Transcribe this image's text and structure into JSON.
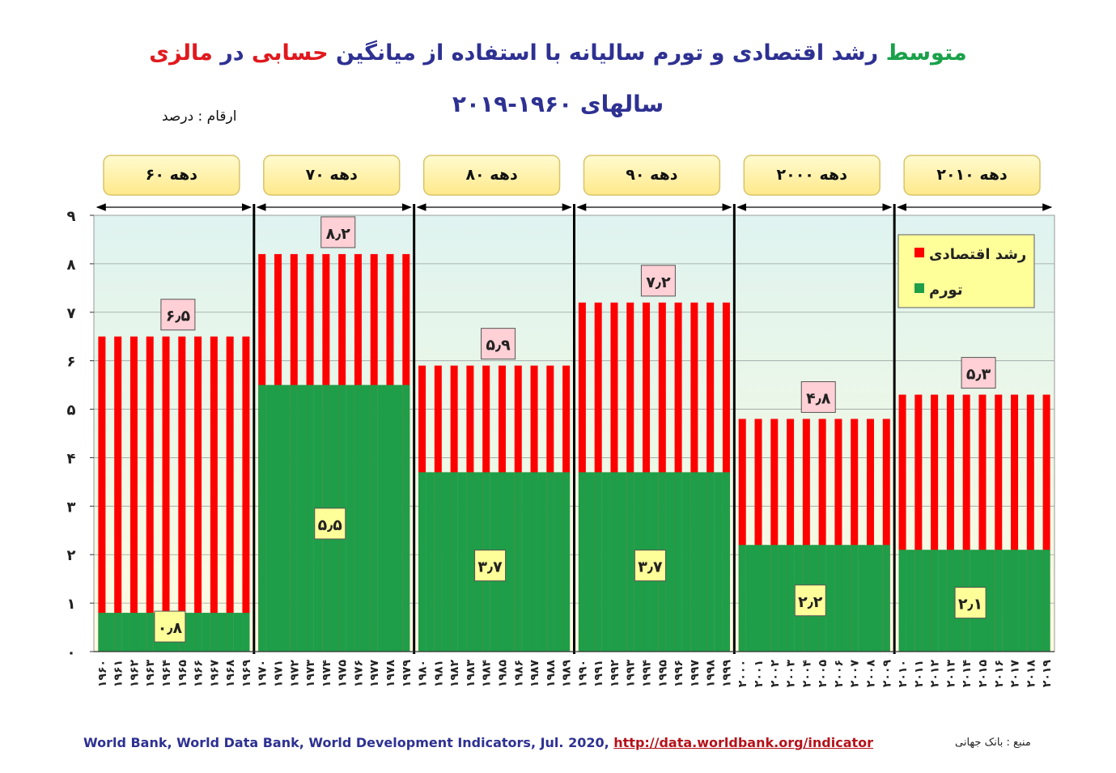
{
  "title": {
    "part1": "متوسط",
    "part2": "رشد اقتصادی و تورم سالیانه با استفاده از میانگین",
    "part3": "حسابی",
    "part4": "در",
    "part5": "مالزی",
    "line2": "سالهای ۱۹۶۰-۲۰۱۹"
  },
  "units_label": "ارقام : درصد",
  "source": {
    "text": "World Bank, World Data Bank, World Development Indicators, Jul. 2020,",
    "link": "http://data.worldbank.org/indicator",
    "label_fa": "منبع : بانک جهانی"
  },
  "colors": {
    "growth": "#ff0000",
    "inflation": "#1e9e48",
    "title_blue": "#2e3192",
    "title_green": "#1aa14a",
    "title_red": "#e0191e",
    "decade_box": "#fff3a6",
    "legend_box": "#ffff99",
    "growth_label_box": "#ffd0d5",
    "inflation_label_box": "#ffff99"
  },
  "chart_data": {
    "type": "bar",
    "ylim": [
      0,
      9
    ],
    "yticks": [
      "۰",
      "۱",
      "۲",
      "۳",
      "۴",
      "۵",
      "۶",
      "۷",
      "۸",
      "۹"
    ],
    "legend": {
      "placement": "top-right",
      "items": [
        {
          "label": "رشد اقتصادی",
          "series": "growth"
        },
        {
          "label": "تورم",
          "series": "inflation"
        }
      ]
    },
    "series": [
      {
        "name": "رشد اقتصادی",
        "key": "growth"
      },
      {
        "name": "تورم",
        "key": "inflation"
      }
    ],
    "decades": [
      {
        "label": "دهه ۶۰",
        "growth": 6.5,
        "inflation": 0.8,
        "growth_label": "۶٫۵",
        "inflation_label": "۰٫۸",
        "years": [
          "۱۹۶۰",
          "۱۹۶۱",
          "۱۹۶۲",
          "۱۹۶۳",
          "۱۹۶۴",
          "۱۹۶۵",
          "۱۹۶۶",
          "۱۹۶۷",
          "۱۹۶۸",
          "۱۹۶۹"
        ]
      },
      {
        "label": "دهه ۷۰",
        "growth": 8.2,
        "inflation": 5.5,
        "growth_label": "۸٫۲",
        "inflation_label": "۵٫۵",
        "years": [
          "۱۹۷۰",
          "۱۹۷۱",
          "۱۹۷۲",
          "۱۹۷۳",
          "۱۹۷۴",
          "۱۹۷۵",
          "۱۹۷۶",
          "۱۹۷۷",
          "۱۹۷۸",
          "۱۹۷۹"
        ]
      },
      {
        "label": "دهه ۸۰",
        "growth": 5.9,
        "inflation": 3.7,
        "growth_label": "۵٫۹",
        "inflation_label": "۳٫۷",
        "years": [
          "۱۹۸۰",
          "۱۹۸۱",
          "۱۹۸۲",
          "۱۹۸۳",
          "۱۹۸۴",
          "۱۹۸۵",
          "۱۹۸۶",
          "۱۹۸۷",
          "۱۹۸۸",
          "۱۹۸۹"
        ]
      },
      {
        "label": "دهه ۹۰",
        "growth": 7.2,
        "inflation": 3.7,
        "growth_label": "۷٫۲",
        "inflation_label": "۳٫۷",
        "years": [
          "۱۹۹۰",
          "۱۹۹۱",
          "۱۹۹۲",
          "۱۹۹۳",
          "۱۹۹۴",
          "۱۹۹۵",
          "۱۹۹۶",
          "۱۹۹۷",
          "۱۹۹۸",
          "۱۹۹۹"
        ]
      },
      {
        "label": "دهه ۲۰۰۰",
        "growth": 4.8,
        "inflation": 2.2,
        "growth_label": "۴٫۸",
        "inflation_label": "۲٫۲",
        "years": [
          "۲۰۰۰",
          "۲۰۰۱",
          "۲۰۰۲",
          "۲۰۰۳",
          "۲۰۰۴",
          "۲۰۰۵",
          "۲۰۰۶",
          "۲۰۰۷",
          "۲۰۰۸",
          "۲۰۰۹"
        ]
      },
      {
        "label": "دهه ۲۰۱۰",
        "growth": 5.3,
        "inflation": 2.1,
        "growth_label": "۵٫۳",
        "inflation_label": "۲٫۱",
        "years": [
          "۲۰۱۰",
          "۲۰۱۱",
          "۲۰۱۲",
          "۲۰۱۳",
          "۲۰۱۴",
          "۲۰۱۵",
          "۲۰۱۶",
          "۲۰۱۷",
          "۲۰۱۸",
          "۲۰۱۹"
        ]
      }
    ]
  }
}
